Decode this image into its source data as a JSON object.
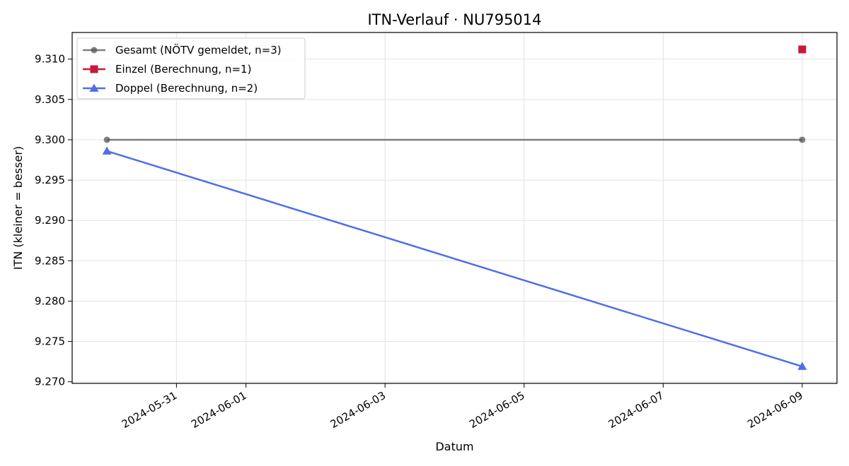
{
  "chart_data": {
    "type": "line",
    "title": "ITN-Verlauf · NU795014",
    "xlabel": "Datum",
    "ylabel": "ITN  (kleiner = besser)",
    "x_type": "date",
    "xlim": [
      "2024-05-29T12:00",
      "2024-06-09T12:00"
    ],
    "ylim": [
      9.2698,
      9.3133
    ],
    "x_ticks": [
      "2024-05-31",
      "2024-06-01",
      "2024-06-03",
      "2024-06-05",
      "2024-06-07",
      "2024-06-09"
    ],
    "y_ticks": [
      9.27,
      9.275,
      9.28,
      9.285,
      9.29,
      9.295,
      9.3,
      9.305,
      9.31
    ],
    "grid": true,
    "legend_position": "top-left",
    "series": [
      {
        "name": "Gesamt (NÖTV gemeldet, n=3)",
        "color": "#555555",
        "opacity": 0.75,
        "marker": "circle",
        "x": [
          "2024-05-30",
          "2024-06-09"
        ],
        "y": [
          9.3,
          9.3
        ]
      },
      {
        "name": "Einzel (Berechnung, n=1)",
        "color": "#c8193c",
        "marker": "square",
        "x": [
          "2024-06-09"
        ],
        "y": [
          9.3112
        ]
      },
      {
        "name": "Doppel (Berechnung, n=2)",
        "color": "#4f6fe8",
        "marker": "triangle",
        "x": [
          "2024-05-30",
          "2024-06-09"
        ],
        "y": [
          9.2986,
          9.2719
        ]
      }
    ]
  }
}
